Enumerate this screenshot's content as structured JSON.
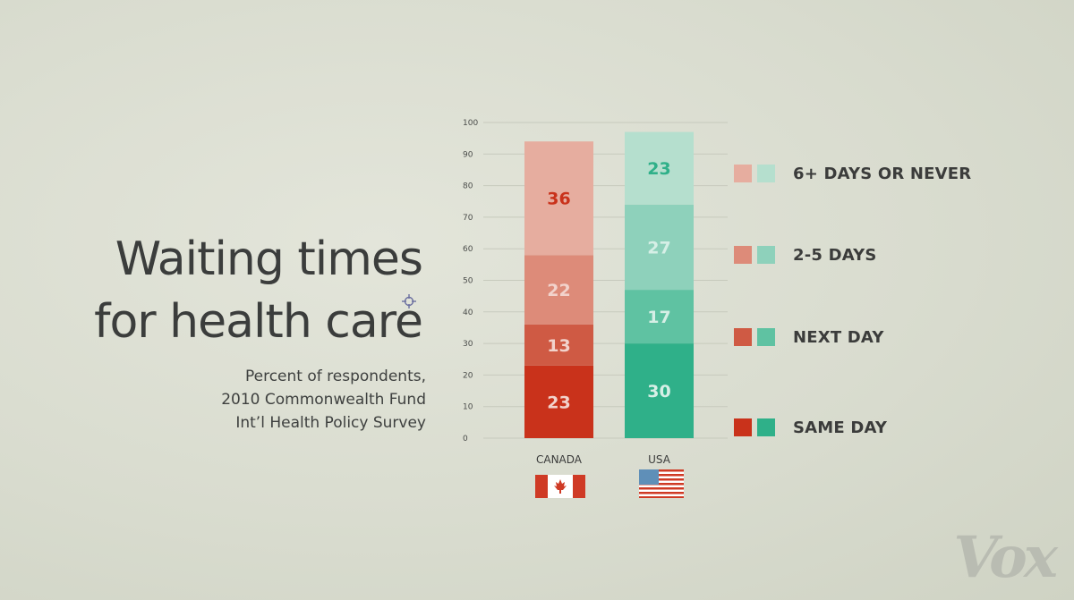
{
  "title_lines": [
    "Waiting times",
    "for health care"
  ],
  "subtitle_lines": [
    "Percent of respondents,",
    "2010 Commonwealth Fund",
    "Int’l Health Policy Survey"
  ],
  "logo": "Vox",
  "chart_data": {
    "type": "bar",
    "stacked": true,
    "categories": [
      "CANADA",
      "USA"
    ],
    "series": [
      {
        "name": "SAME DAY",
        "values": [
          23,
          30
        ]
      },
      {
        "name": "NEXT DAY",
        "values": [
          13,
          17
        ]
      },
      {
        "name": "2-5 DAYS",
        "values": [
          22,
          27
        ]
      },
      {
        "name": "6+ DAYS OR NEVER",
        "values": [
          36,
          23
        ]
      }
    ],
    "ylim": [
      0,
      100
    ],
    "yticks": [
      0,
      10,
      20,
      30,
      40,
      50,
      60,
      70,
      80,
      90,
      100
    ],
    "grid": true,
    "legend_position": "right",
    "colors": {
      "CANADA": [
        "#c9321b",
        "#cf5a44",
        "#dd8b79",
        "#e6ad9f"
      ],
      "USA": [
        "#2fb089",
        "#5fc2a2",
        "#8ed1bb",
        "#b5dfce"
      ]
    },
    "value_label_colors": {
      "CANADA": [
        "#f2d3cc",
        "#f2d3cc",
        "#f2d3cc",
        "#c9321b"
      ],
      "USA": [
        "#d6efe6",
        "#d6efe6",
        "#d6efe6",
        "#2fb089"
      ]
    },
    "flags": [
      "canada-flag",
      "usa-flag"
    ]
  }
}
